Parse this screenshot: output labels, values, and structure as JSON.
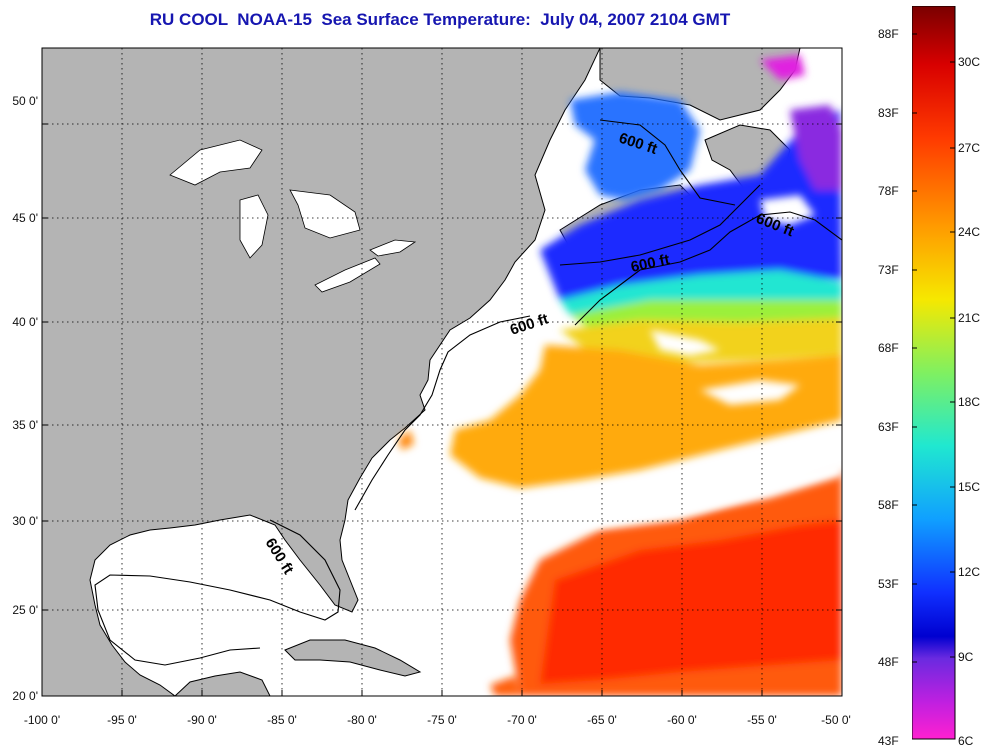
{
  "title": "RU COOL  NOAA-15  Sea Surface Temperature:  July 04, 2007 2104 GMT",
  "axes": {
    "lat_labels": [
      "50 0'",
      "45 0'",
      "40 0'",
      "35 0'",
      "30 0'",
      "25 0'",
      "20 0'"
    ],
    "lon_labels": [
      "-100 0'",
      "-95 0'",
      "-90 0'",
      "-85 0'",
      "-80 0'",
      "-75 0'",
      "-70 0'",
      "-65 0'",
      "-60 0'",
      "-55 0'",
      "-50 0'"
    ]
  },
  "contour_labels": [
    "600 ft",
    "600 ft",
    "600 ft",
    "600 ft",
    "600 ft"
  ],
  "colorbar": {
    "fahrenheit": [
      "88F",
      "83F",
      "78F",
      "73F",
      "68F",
      "63F",
      "58F",
      "53F",
      "48F",
      "43F"
    ],
    "celsius": [
      "30C",
      "27C",
      "24C",
      "21C",
      "18C",
      "15C",
      "12C",
      "9C",
      "6C"
    ]
  },
  "colors": {
    "land": "#b4b4b4",
    "title": "#1616b0",
    "cold": "#1a1aff",
    "warm": "#ff2a00"
  }
}
